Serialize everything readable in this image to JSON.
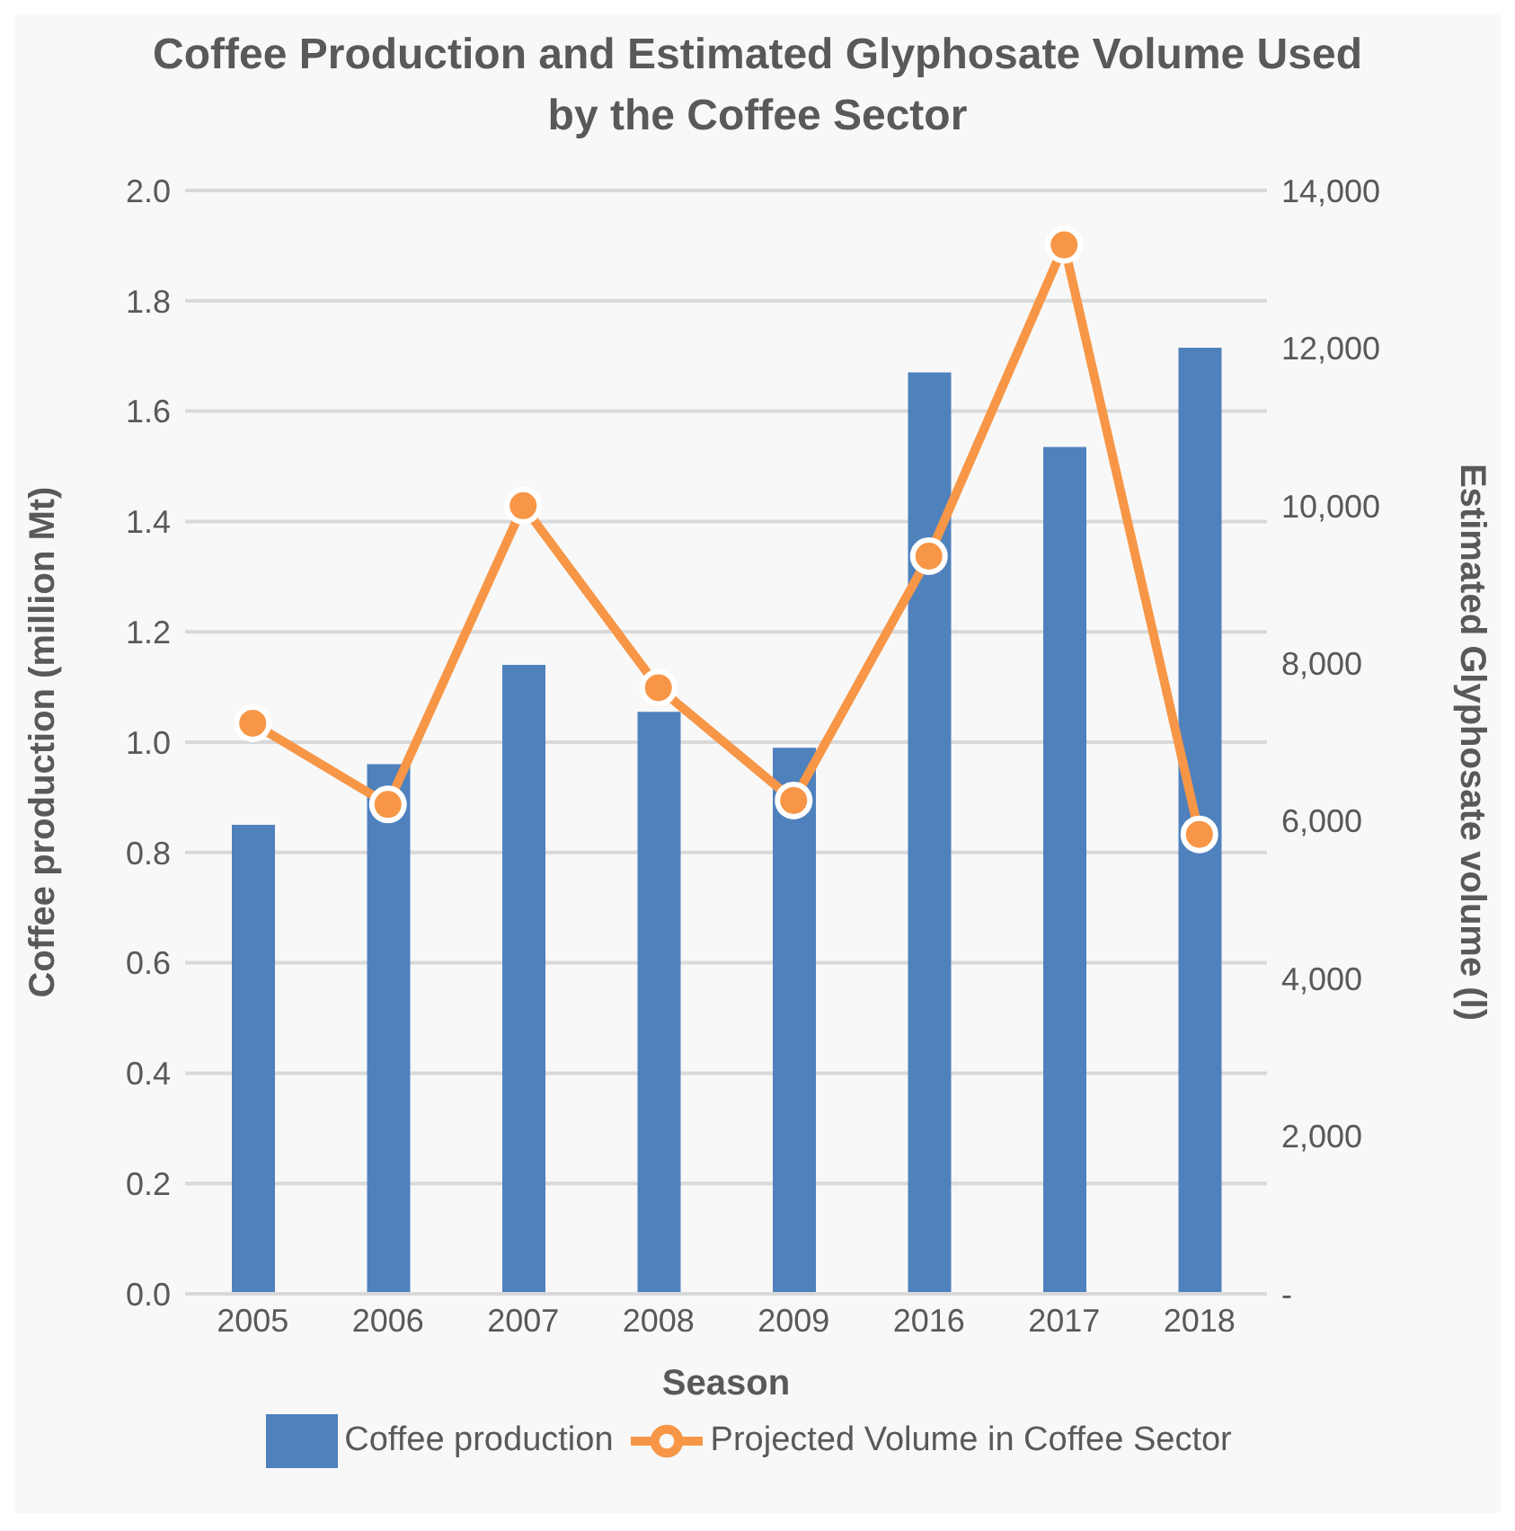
{
  "chart_data": {
    "type": "bar",
    "title": "Coffee Production and Estimated Glyphosate Volume Used by the Coffee Sector",
    "xlabel": "Season",
    "ylabel": "Coffee production (million Mt)",
    "y2label": "Estimated Glyphosate volume (l)",
    "categories": [
      "2005",
      "2006",
      "2007",
      "2008",
      "2009",
      "2016",
      "2017",
      "2018"
    ],
    "series": [
      {
        "name": "Coffee production",
        "color": "#4f81bd",
        "values": [
          0.85,
          0.96,
          1.14,
          1.055,
          0.99,
          1.67,
          1.535,
          1.715
        ]
      },
      {
        "name": "Projected Volume in Coffee Sector",
        "type": "line",
        "axis": "y2",
        "color": "#f79646",
        "marker": "circle",
        "values": [
          7240,
          6210,
          10000,
          7690,
          6260,
          9360,
          13310,
          5830
        ]
      }
    ],
    "ylim": [
      0,
      2
    ],
    "yticks": [
      {
        "value": 0,
        "label": "0.0"
      },
      {
        "value": 0.2,
        "label": "0.2"
      },
      {
        "value": 0.4,
        "label": "0.4"
      },
      {
        "value": 0.6,
        "label": "0.6"
      },
      {
        "value": 0.8,
        "label": "0.8"
      },
      {
        "value": 1,
        "label": "1.0"
      },
      {
        "value": 1.2,
        "label": "1.2"
      },
      {
        "value": 1.4,
        "label": "1.4"
      },
      {
        "value": 1.6,
        "label": "1.6"
      },
      {
        "value": 1.8,
        "label": "1.8"
      },
      {
        "value": 2,
        "label": "2.0"
      }
    ],
    "y2lim": [
      0,
      14000
    ],
    "y2ticks": [
      {
        "value": 0,
        "label": "-"
      },
      {
        "value": 2000,
        "label": "2,000"
      },
      {
        "value": 4000,
        "label": "4,000"
      },
      {
        "value": 6000,
        "label": "6,000"
      },
      {
        "value": 8000,
        "label": "8,000"
      },
      {
        "value": 10000,
        "label": "10,000"
      },
      {
        "value": 12000,
        "label": "12,000"
      },
      {
        "value": 14000,
        "label": "14,000"
      }
    ],
    "grid": "y",
    "legend": "bottom"
  }
}
